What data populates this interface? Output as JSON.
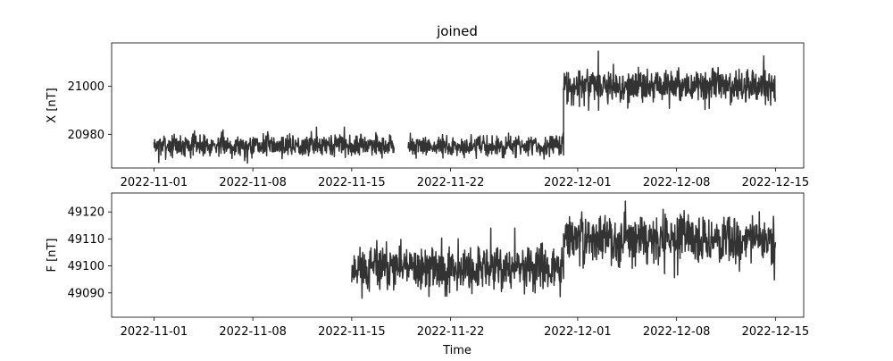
{
  "figure": {
    "title": "joined",
    "xlabel": "Time",
    "line_color": "#333333"
  },
  "chart_data": [
    {
      "type": "line",
      "ylabel": "X [nT]",
      "xlim": [
        "2022-10-29",
        "2022-12-17"
      ],
      "ylim": [
        20966,
        21018
      ],
      "yticks": [
        20980,
        21000
      ],
      "xticks": [
        "2022-11-01",
        "2022-11-08",
        "2022-11-15",
        "2022-11-22",
        "2022-12-01",
        "2022-12-08",
        "2022-12-15"
      ],
      "grid": false,
      "noise_seed": 7,
      "series": [
        {
          "segments": [
            {
              "start": "2022-11-01",
              "end": "2022-11-18",
              "mean": 20975.5,
              "spread": 2.2,
              "min": 20968,
              "max": 20983
            },
            {
              "start": "2022-11-19",
              "end": "2022-11-30",
              "mean": 20975,
              "spread": 2.2,
              "min": 20968,
              "max": 20982
            },
            {
              "start": "2022-11-30",
              "end": "2022-12-15",
              "mean": 21000,
              "spread": 3.3,
              "min": 20990,
              "max": 21015
            }
          ]
        }
      ]
    },
    {
      "type": "line",
      "ylabel": "F [nT]",
      "xlim": [
        "2022-10-29",
        "2022-12-17"
      ],
      "ylim": [
        49081,
        49127
      ],
      "yticks": [
        49090,
        49100,
        49110,
        49120
      ],
      "xticks": [
        "2022-11-01",
        "2022-11-08",
        "2022-11-15",
        "2022-11-22",
        "2022-12-01",
        "2022-12-08",
        "2022-12-15"
      ],
      "grid": false,
      "noise_seed": 11,
      "series": [
        {
          "segments": [
            {
              "start": "2022-11-15",
              "end": "2022-11-30",
              "mean": 49099,
              "spread": 4,
              "min": 49083,
              "max": 49114
            },
            {
              "start": "2022-11-30",
              "end": "2022-12-15",
              "mean": 49110,
              "spread": 4,
              "min": 49093,
              "max": 49124
            }
          ]
        }
      ]
    }
  ]
}
